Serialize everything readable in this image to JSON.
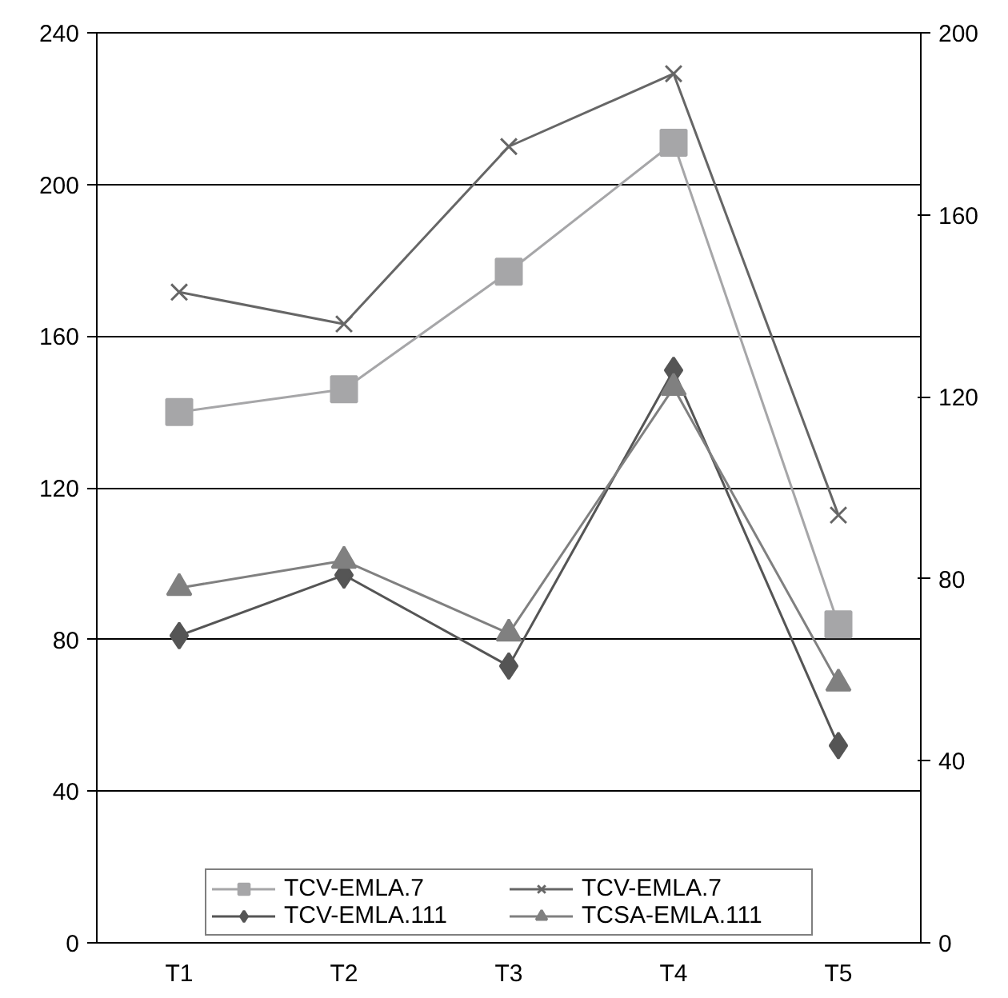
{
  "chart_data": {
    "type": "line",
    "categories": [
      "T1",
      "T2",
      "T3",
      "T4",
      "T5"
    ],
    "ylim": [
      0,
      240
    ],
    "yticks": [
      0,
      40,
      80,
      120,
      160,
      200,
      240
    ],
    "y2lim": [
      0,
      200
    ],
    "y2ticks": [
      0,
      40,
      80,
      120,
      160,
      200
    ],
    "grid": "y",
    "legend": "bottom",
    "line_style": "solid",
    "series": [
      {
        "name": "TCV-EMLA.7",
        "color": "#a6a6a8",
        "marker": "square",
        "values": [
          140,
          146,
          177,
          211,
          84
        ]
      },
      {
        "name": "TCV-EMLA.7",
        "color": "#666666",
        "marker": "cross",
        "axis": "y2",
        "values": [
          143,
          136,
          175,
          191,
          94
        ]
      },
      {
        "name": "TCV-EMLA.111",
        "color": "#555555",
        "marker": "diamond",
        "values": [
          81,
          97,
          73,
          151,
          52
        ]
      },
      {
        "name": "TCSA-EMLA.111",
        "color": "#808080",
        "marker": "triangle",
        "axis": "y2",
        "values": [
          78,
          84,
          68,
          122,
          57
        ]
      }
    ]
  }
}
